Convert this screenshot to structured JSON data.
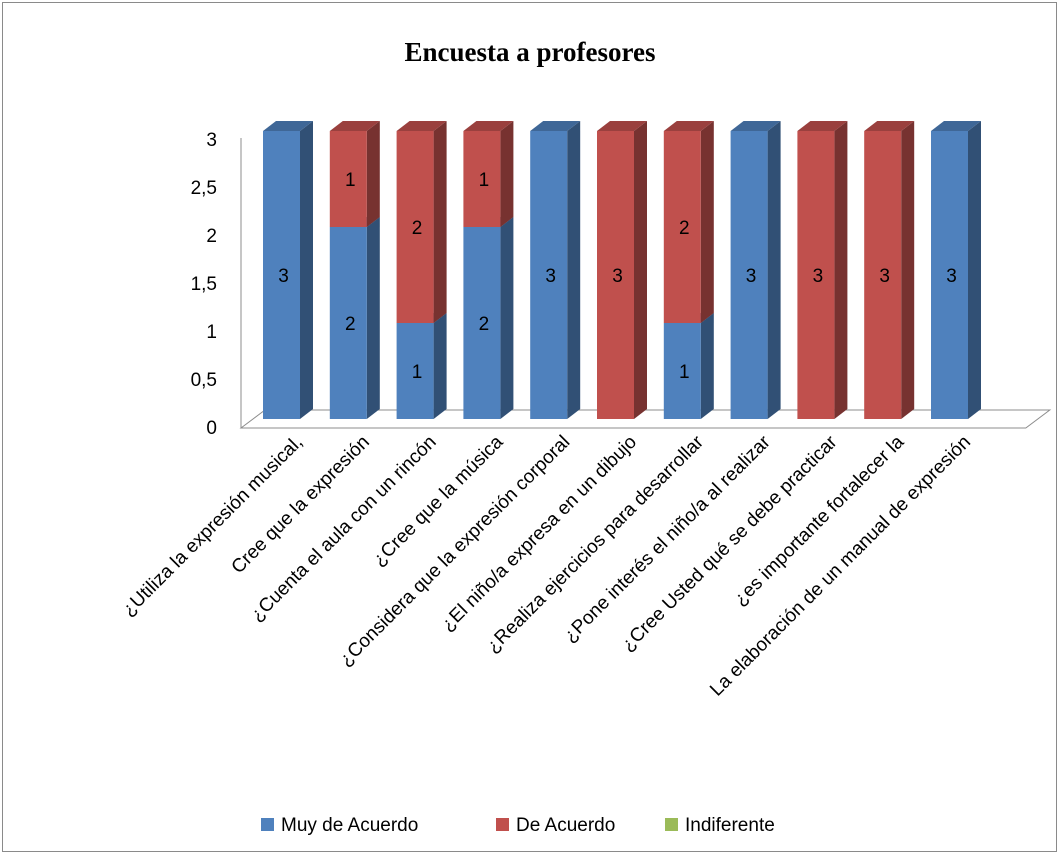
{
  "chart_data": {
    "type": "bar",
    "stacked": true,
    "three_d": true,
    "title": "Encuesta a profesores",
    "xlabel": "",
    "ylabel": "",
    "ylim": [
      0,
      3
    ],
    "y_ticks": [
      "0",
      "0,5",
      "1",
      "1,5",
      "2",
      "2,5",
      "3"
    ],
    "grid": false,
    "legend_position": "bottom",
    "categories": [
      "¿Utiliza la expresión musical,",
      "Cree que la expresión",
      "¿Cuenta el aula con un rincón",
      "¿Cree que la música",
      "¿Considera que la expresión corporal",
      "¿El niño/a expresa en un dibujo",
      "¿Realiza ejercicios para desarrollar",
      "¿Pone interés el niño/a al realizar",
      "¿Cree Usted qué se debe practicar",
      "¿es importante fortalecer la",
      "La elaboración de un manual de expresión"
    ],
    "series": [
      {
        "name": "Muy de Acuerdo",
        "color": "#4F81BD",
        "values": [
          3,
          2,
          1,
          2,
          3,
          0,
          1,
          3,
          0,
          0,
          3
        ]
      },
      {
        "name": "De Acuerdo",
        "color": "#C0504D",
        "values": [
          0,
          1,
          2,
          1,
          0,
          3,
          2,
          0,
          3,
          3,
          0
        ]
      },
      {
        "name": "Indiferente",
        "color": "#9BBB59",
        "values": [
          0,
          0,
          0,
          0,
          0,
          0,
          0,
          0,
          0,
          0,
          0
        ]
      }
    ]
  }
}
